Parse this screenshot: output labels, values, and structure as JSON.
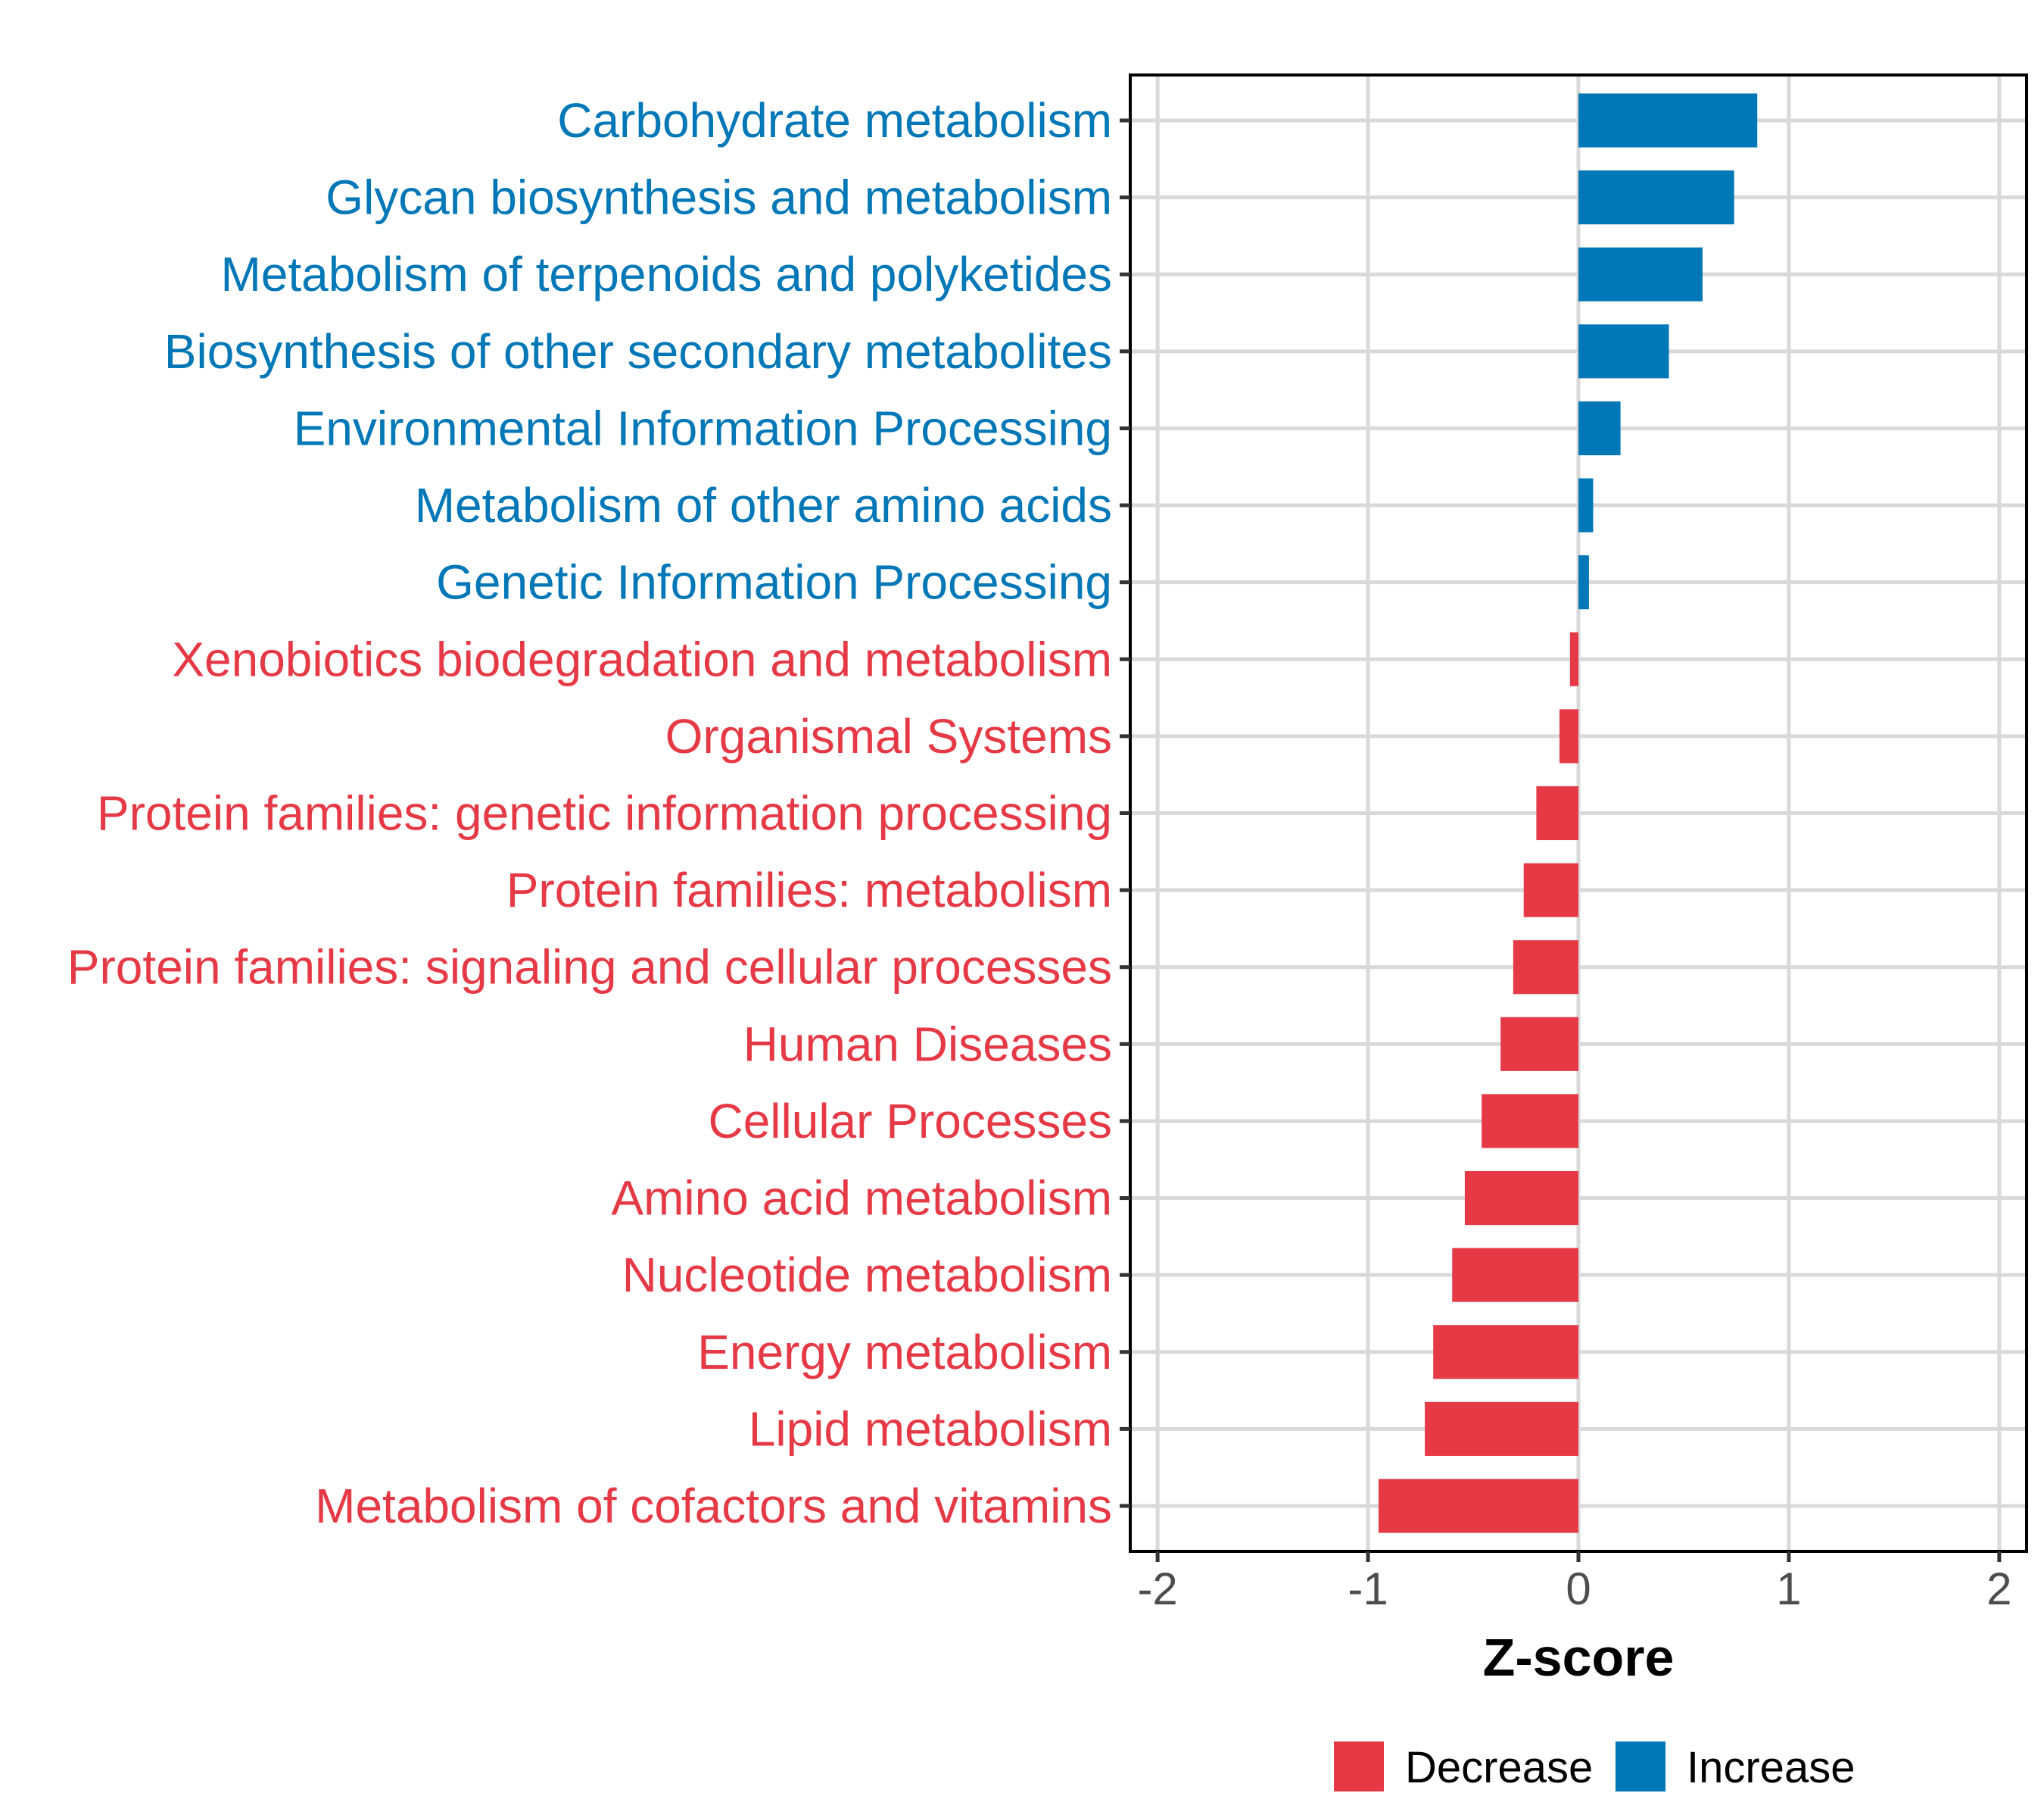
{
  "chart_data": {
    "type": "bar",
    "orientation": "horizontal",
    "title": "",
    "xlabel": "Z-score",
    "ylabel": "",
    "xlim": [
      -2.13,
      2.13
    ],
    "xticks": [
      -2,
      -1,
      0,
      1,
      2
    ],
    "xtick_labels": [
      "-2",
      "-1",
      "0",
      "1",
      "2"
    ],
    "grid": true,
    "legend_position": "bottom",
    "categories": [
      "Carbohydrate metabolism",
      "Glycan biosynthesis and metabolism",
      "Metabolism of terpenoids and polyketides",
      "Biosynthesis of other secondary metabolites",
      "Environmental Information Processing",
      "Metabolism of other amino acids",
      "Genetic Information Processing",
      "Xenobiotics biodegradation and metabolism",
      "Organismal Systems",
      "Protein families: genetic information processing",
      "Protein families: metabolism",
      "Protein families: signaling and cellular processes",
      "Human Diseases",
      "Cellular Processes",
      "Amino acid metabolism",
      "Nucleotide metabolism",
      "Energy metabolism",
      "Lipid metabolism",
      "Metabolism of cofactors and vitamins"
    ],
    "values": [
      0.85,
      0.74,
      0.59,
      0.43,
      0.2,
      0.07,
      0.05,
      -0.04,
      -0.09,
      -0.2,
      -0.26,
      -0.31,
      -0.37,
      -0.46,
      -0.54,
      -0.6,
      -0.69,
      -0.73,
      -0.95
    ],
    "groups": [
      "Increase",
      "Increase",
      "Increase",
      "Increase",
      "Increase",
      "Increase",
      "Increase",
      "Decrease",
      "Decrease",
      "Decrease",
      "Decrease",
      "Decrease",
      "Decrease",
      "Decrease",
      "Decrease",
      "Decrease",
      "Decrease",
      "Decrease",
      "Decrease"
    ],
    "legend": [
      {
        "label": "Decrease",
        "color": "#E63946"
      },
      {
        "label": "Increase",
        "color": "#0077B6"
      }
    ],
    "colors": {
      "Decrease": "#E63946",
      "Increase": "#0077B6"
    }
  }
}
